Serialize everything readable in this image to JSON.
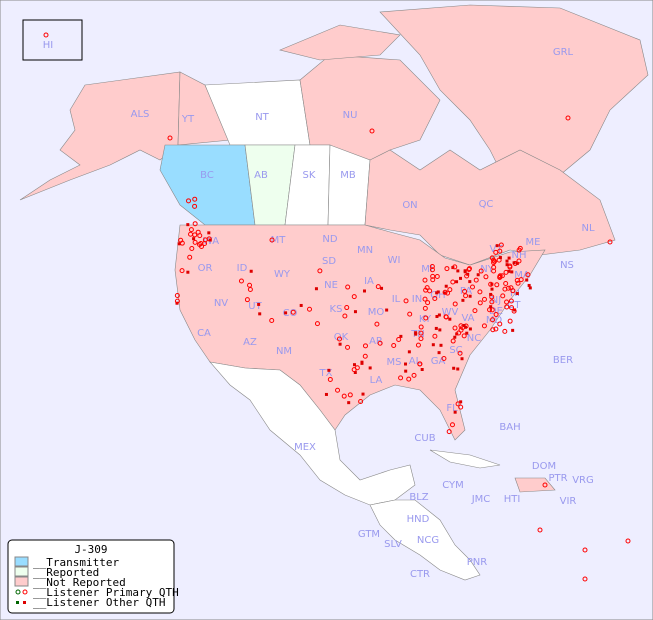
{
  "legend": {
    "title": "J-309",
    "items": [
      {
        "label": "__Transmitter",
        "color": "#99ddff"
      },
      {
        "label": "__Reported",
        "color": "#eeffee"
      },
      {
        "label": "__Not Reported",
        "color": "#ffcccc"
      },
      {
        "label": "__Listener Primary QTH",
        "color": "#ff0000"
      },
      {
        "label": "__Listener Other QTH",
        "color": "#dd0000"
      }
    ]
  },
  "colors": {
    "background": "#eeeeff",
    "transmitter": "#99ddff",
    "reported": "#eeffee",
    "not_reported": "#ffcccc",
    "unlisted": "#ffffff",
    "dot": "#ff0000",
    "label": "#9999ee"
  },
  "regions": [
    "HI",
    "ALS",
    "YT",
    "NT",
    "NU",
    "GRL",
    "BC",
    "AB",
    "SK",
    "MB",
    "ON",
    "QC",
    "NL",
    "NS",
    "WA",
    "OR",
    "ID",
    "MT",
    "ND",
    "MN",
    "WI",
    "MI",
    "NY",
    "VT",
    "NH",
    "ME",
    "MA",
    "RI",
    "CT",
    "NJ",
    "PA",
    "DE",
    "MD",
    "VA",
    "WV",
    "OH",
    "IN",
    "IL",
    "IA",
    "SD",
    "NE",
    "WY",
    "UT",
    "NV",
    "CA",
    "AZ",
    "NM",
    "CO",
    "KS",
    "MO",
    "KY",
    "TN",
    "NC",
    "SC",
    "GA",
    "AL",
    "MS",
    "AR",
    "LA",
    "OK",
    "TX",
    "FL",
    "BER",
    "BAH",
    "CUB",
    "MEX",
    "CYM",
    "JMC",
    "HTI",
    "DOM",
    "PTR",
    "VRG",
    "VIR",
    "BLZ",
    "HND",
    "GTM",
    "SLV",
    "NCG",
    "CTR",
    "PNR"
  ]
}
